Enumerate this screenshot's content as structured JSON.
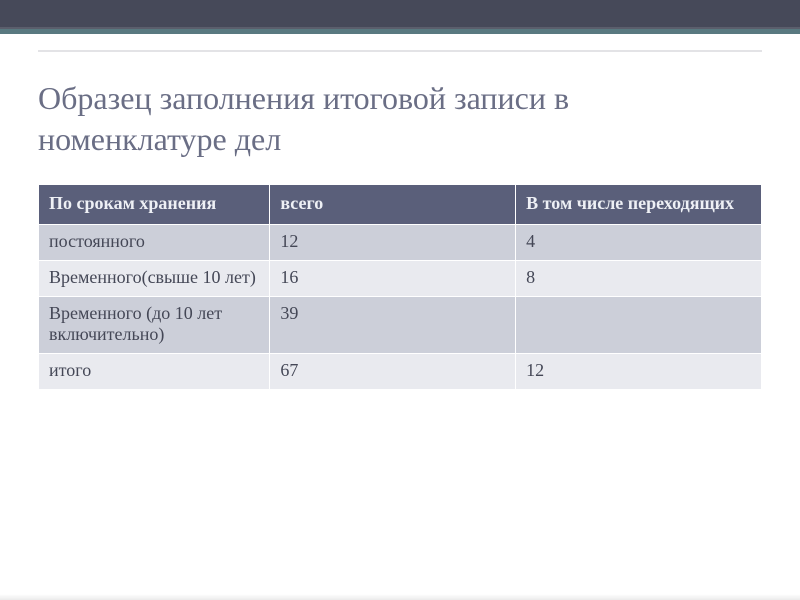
{
  "colors": {
    "band": "#464959",
    "accent": "#6aa1a1",
    "title": "#6a6e85",
    "header_bg": "#5a5f7a",
    "header_text": "#eef0f5",
    "row_alt_a": "#cccfd9",
    "row_alt_b": "#e9eaef",
    "cell_text": "#444756",
    "border": "#ffffff",
    "hr": "#e3e3e6"
  },
  "typography": {
    "title_fontsize_pt": 24,
    "table_fontsize_pt": 14,
    "font_family": "Georgia / PT Serif"
  },
  "title": "Образец заполнения итоговой записи в номенклатуре дел",
  "table": {
    "type": "table",
    "columns": [
      {
        "label": "По срокам хранения",
        "width_pct": 32
      },
      {
        "label": "всего",
        "width_pct": 34
      },
      {
        "label": "В том числе переходящих",
        "width_pct": 34
      }
    ],
    "rows": [
      [
        "постоянного",
        "12",
        "4"
      ],
      [
        "Временного(свыше 10 лет)",
        "16",
        "8"
      ],
      [
        "Временного (до 10 лет включительно)",
        "39",
        ""
      ],
      [
        "итого",
        "67",
        "12"
      ]
    ],
    "row_backgrounds": [
      "row-a",
      "row-b",
      "row-a",
      "row-b"
    ]
  }
}
